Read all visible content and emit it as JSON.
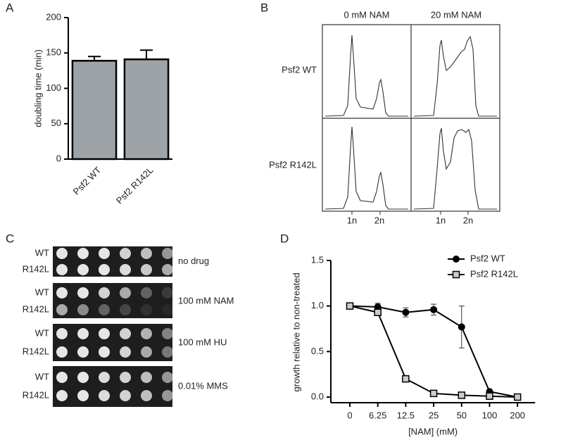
{
  "panel_labels": [
    "A",
    "B",
    "C",
    "D"
  ],
  "chart_data": [
    {
      "type": "bar",
      "ylabel": "doubling time (min)",
      "categories": [
        "Psf2 WT",
        "Psf2 R142L"
      ],
      "values": [
        139,
        141
      ],
      "errors": [
        6,
        13
      ],
      "color": "#9ea3a8",
      "ylim": [
        0,
        200
      ],
      "yticks": [
        0,
        50,
        100,
        150,
        200
      ]
    },
    {
      "type": "line",
      "xlabel": "[NAM] (mM)",
      "ylabel": "growth relative to non-treated",
      "categories": [
        "0",
        "6.25",
        "12.5",
        "25",
        "50",
        "100",
        "200"
      ],
      "series": [
        {
          "name": "Psf2 WT",
          "color": "#000000",
          "marker": "circle",
          "values": [
            1.0,
            0.99,
            0.93,
            0.96,
            0.77,
            0.06,
            0.0
          ],
          "errors": [
            0.02,
            0.04,
            0.05,
            0.06,
            0.23,
            0.01,
            0.0
          ]
        },
        {
          "name": "Psf2 R142L",
          "color": "#000000",
          "marker": "square",
          "values": [
            1.0,
            0.93,
            0.2,
            0.04,
            0.02,
            0.01,
            0.0
          ],
          "errors": [
            0.01,
            0.02,
            0.03,
            0.01,
            0.01,
            0.0,
            0.0
          ]
        }
      ],
      "ylim": [
        0,
        1.5
      ],
      "yticks": [
        {
          "value": 0,
          "label": "0.0"
        },
        {
          "value": 0.5,
          "label": "0.5"
        },
        {
          "value": 1,
          "label": "1.0"
        },
        {
          "value": 1.5,
          "label": "1.5"
        }
      ],
      "legend": "upper right"
    }
  ],
  "flow": {
    "columns": [
      "0 mM NAM",
      "20 mM NAM"
    ],
    "rows": [
      "Psf2 WT",
      "Psf2 R142L"
    ],
    "xticks": [
      "1n",
      "2n"
    ]
  },
  "spots": {
    "strains": [
      "WT",
      "R142L"
    ],
    "conditions": [
      "no drug",
      "100 mM NAM",
      "100 mM HU",
      "0.01% MMS"
    ]
  }
}
